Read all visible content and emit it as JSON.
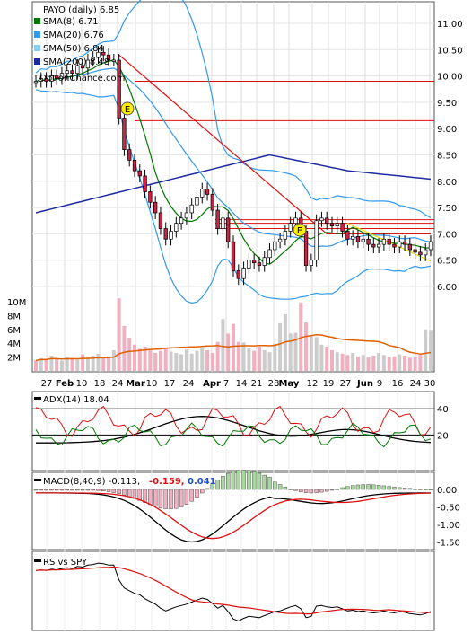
{
  "chart_data": {
    "type": "line",
    "symbol": "PAYO (daily) 6.85",
    "watermark": "OptionChance.com",
    "earnings_marker": "E",
    "colors": {
      "sma8": "#007700",
      "sma20": "#3399ee",
      "sma50": "#88ccf0",
      "sma200": "#1e2aa0",
      "upper_lines": "#dd1111",
      "adx": "#000000",
      "plus_di": "#007700",
      "minus_di": "#dd1111",
      "rs": "#000000",
      "rs_ma": "#dd1111",
      "volume": "#f0b0c0",
      "volume_ma": "#e06000"
    },
    "legend": [
      {
        "label": "SMA(8) 6.71",
        "color": "#007700"
      },
      {
        "label": "SMA(20) 6.76",
        "color": "#3399ee"
      },
      {
        "label": "SMA(50) 6.84",
        "color": "#88ccf0"
      },
      {
        "label": "SMA(200) 8.48",
        "color": "#1e2aa0"
      }
    ],
    "x_tick_labels": [
      "27",
      "Feb",
      "10",
      "18",
      "24",
      "Mar",
      "10",
      "17",
      "24",
      "Apr",
      "7",
      "14",
      "21",
      "28",
      "May",
      "12",
      "19",
      "27",
      "Jun",
      "9",
      "16",
      "24",
      "30"
    ],
    "price_axis": {
      "ylim": [
        5.5,
        11.4
      ],
      "ticks": [
        "6.00",
        "6.50",
        "7.00",
        "7.50",
        "8.00",
        "8.50",
        "9.00",
        "9.50",
        "10.00",
        "10.50",
        "11.00"
      ]
    },
    "volume_axis": {
      "ticks": [
        "2M",
        "4M",
        "6M",
        "8M",
        "10M"
      ]
    },
    "adx_panel": {
      "label": "ADX(14) 18.04",
      "ticks": [
        "20",
        "40"
      ]
    },
    "macd_panel": {
      "label": "MACD(8,40,9) -0.113,",
      "value2": "-0.159,",
      "value3": "0.041",
      "ticks": [
        "0.00",
        "-0.50",
        "-1.00",
        "-1.50"
      ]
    },
    "rs_panel": {
      "label": "RS vs SPY"
    },
    "resistance_levels": [
      9.9,
      9.15,
      7.27,
      7.2,
      7.1
    ],
    "close": [
      9.9,
      9.95,
      9.9,
      10.0,
      9.95,
      10.05,
      10.1,
      10.05,
      10.2,
      10.15,
      10.3,
      10.35,
      10.45,
      10.4,
      10.3,
      10.3,
      9.2,
      8.6,
      8.4,
      8.2,
      8.1,
      7.8,
      7.6,
      7.4,
      7.1,
      6.9,
      7.05,
      7.2,
      7.3,
      7.4,
      7.55,
      7.7,
      7.85,
      7.75,
      7.45,
      7.1,
      7.3,
      6.85,
      6.3,
      6.15,
      6.35,
      6.5,
      6.45,
      6.4,
      6.55,
      6.7,
      6.85,
      6.9,
      7.05,
      7.2,
      7.3,
      7.05,
      6.4,
      6.5,
      7.25,
      7.3,
      7.2,
      7.15,
      7.2,
      7.05,
      6.9,
      6.95,
      6.85,
      6.9,
      6.8,
      6.75,
      6.8,
      6.9,
      6.8,
      6.75,
      6.85,
      6.8,
      6.7,
      6.65,
      6.6,
      6.7,
      6.85
    ]
  }
}
